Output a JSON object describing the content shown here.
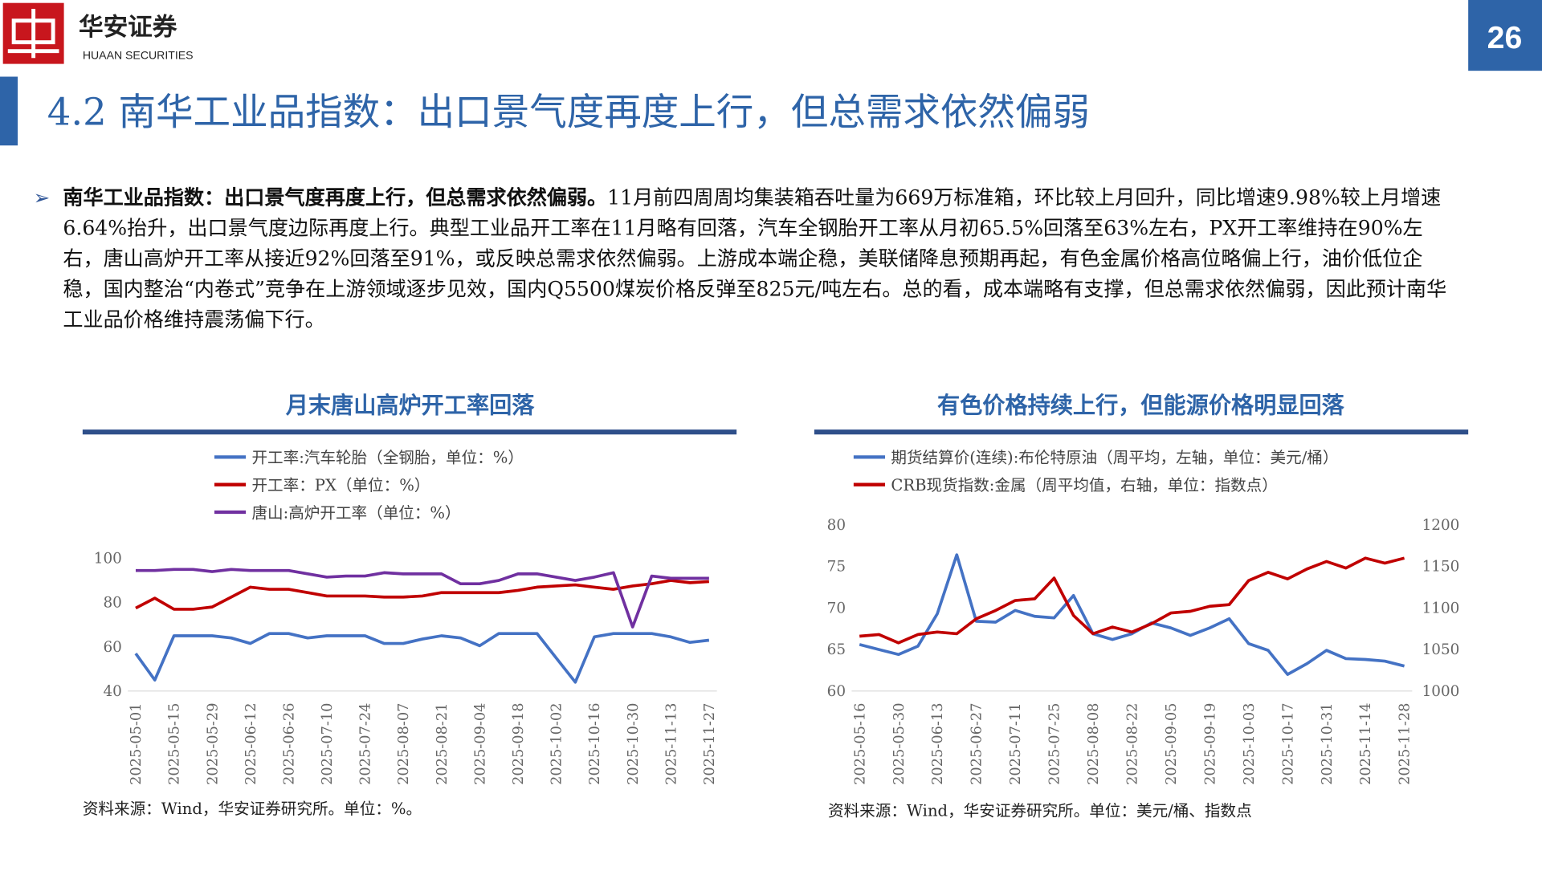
{
  "header": {
    "logo_cn": "华安证券",
    "logo_en": "HUAAN SECURITIES",
    "page_number": "26"
  },
  "title": "4.2 南华工业品指数：出口景气度再度上行，但总需求依然偏弱",
  "bullet": {
    "lead": "南华工业品指数：出口景气度再度上行，但总需求依然偏弱。",
    "text": "11月前四周周均集装箱吞吐量为669万标准箱，环比较上月回升，同比增速9.98%较上月增速6.64%抬升，出口景气度边际再度上行。典型工业品开工率在11月略有回落，汽车全钢胎开工率从月初65.5%回落至63%左右，PX开工率维持在90%左右，唐山高炉开工率从接近92%回落至91%，或反映总需求依然偏弱。上游成本端企稳，美联储降息预期再起，有色金属价格高位略偏上行，油价低位企稳，国内整治“内卷式”竞争在上游领域逐步见效，国内Q5500煤炭价格反弹至825元/吨左右。总的看，成本端略有支撑，但总需求依然偏弱，因此预计南华工业品价格维持震荡偏下行。"
  },
  "chart_data": [
    {
      "type": "line",
      "title": "月末唐山高炉开工率回落",
      "categories": [
        "2025-05-01",
        null,
        "2025-05-15",
        null,
        "2025-05-29",
        null,
        "2025-06-12",
        null,
        "2025-06-26",
        null,
        "2025-07-10",
        null,
        "2025-07-24",
        null,
        "2025-08-07",
        null,
        "2025-08-21",
        null,
        "2025-09-04",
        null,
        "2025-09-18",
        null,
        "2025-10-02",
        null,
        "2025-10-16",
        null,
        "2025-10-30",
        null,
        "2025-11-13",
        null,
        "2025-11-27"
      ],
      "series": [
        {
          "name": "开工率:汽车轮胎（全钢胎，单位：%）",
          "color": "#4472c4",
          "values": [
            57,
            45,
            65,
            65,
            65,
            64,
            61.5,
            66,
            66,
            64,
            65,
            65,
            65,
            61.5,
            61.5,
            63.5,
            65,
            64,
            60.5,
            66,
            66,
            66,
            55,
            44,
            64.5,
            66,
            66,
            66,
            64.5,
            62,
            63
          ]
        },
        {
          "name": "开工率：PX（单位：%）",
          "color": "#c00000",
          "values": [
            77.5,
            82,
            77,
            77,
            78,
            82.5,
            87,
            86,
            86,
            84.5,
            83,
            83,
            83,
            82.5,
            82.5,
            83,
            84.5,
            84.5,
            84.5,
            84.5,
            85.5,
            87,
            87.5,
            88,
            87,
            86,
            87.5,
            88.5,
            90,
            89,
            89.5
          ]
        },
        {
          "name": "唐山:高炉开工率（单位：%）",
          "color": "#7030a0",
          "values": [
            94.5,
            94.5,
            95,
            95,
            94,
            95,
            94.5,
            94.5,
            94.5,
            93,
            91.5,
            92,
            92,
            93.5,
            93,
            93,
            93,
            88.5,
            88.5,
            90,
            93,
            93,
            91.5,
            90,
            91.5,
            93.5,
            69,
            92,
            91,
            91,
            91
          ]
        }
      ],
      "ylim": [
        40,
        100
      ],
      "yticks": [
        40,
        60,
        80,
        100
      ],
      "grid": false,
      "source": "资料来源：Wind，华安证券研究所。单位：%。"
    },
    {
      "type": "line",
      "title": "有色价格持续上行，但能源价格明显回落",
      "categories": [
        "2025-05-16",
        null,
        "2025-05-30",
        null,
        "2025-06-13",
        null,
        "2025-06-27",
        null,
        "2025-07-11",
        null,
        "2025-07-25",
        null,
        "2025-08-08",
        null,
        "2025-08-22",
        null,
        "2025-09-05",
        null,
        "2025-09-19",
        null,
        "2025-10-03",
        null,
        "2025-10-17",
        null,
        "2025-10-31",
        null,
        "2025-11-14",
        null,
        "2025-11-28"
      ],
      "series": [
        {
          "name": "期货结算价(连续):布伦特原油（周平均，左轴，单位：美元/桶）",
          "color": "#4472c4",
          "values": [
            65.6,
            65.0,
            64.4,
            65.4,
            69.3,
            76.4,
            68.4,
            68.3,
            69.7,
            69.0,
            68.8,
            71.5,
            66.9,
            66.2,
            66.9,
            68.2,
            67.6,
            66.7,
            67.6,
            68.7,
            65.7,
            64.9,
            62.0,
            63.3,
            64.9,
            63.9,
            63.8,
            63.6,
            63.0
          ]
        },
        {
          "name": "CRB现货指数:金属（周平均值，右轴，单位：指数点）",
          "color": "#c00000",
          "axis": "y2",
          "values": [
            1066,
            1068,
            1058,
            1068,
            1071,
            1069,
            1087,
            1097,
            1109,
            1111,
            1136,
            1091,
            1069,
            1077,
            1071,
            1081,
            1094,
            1096,
            1102,
            1104,
            1133,
            1143,
            1135,
            1147,
            1156,
            1148,
            1160,
            1154,
            1160
          ]
        }
      ],
      "ylim": [
        60,
        80
      ],
      "yticks": [
        60,
        65,
        70,
        75,
        80
      ],
      "y2lim": [
        1000,
        1200
      ],
      "y2ticks": [
        1000,
        1050,
        1100,
        1150,
        1200
      ],
      "grid": false,
      "source": "资料来源：Wind，华安证券研究所。单位：美元/桶、指数点"
    }
  ]
}
